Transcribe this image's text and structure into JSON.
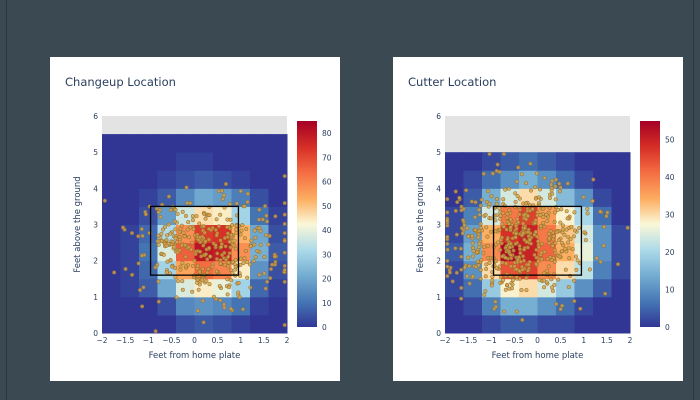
{
  "colors": {
    "background": "#3b4a52",
    "panel": "#ffffff",
    "na_region": "#e3e3e3",
    "strike_zone": "#000000",
    "point_fill": "#d7a24a",
    "point_edge": "#8a6a2c"
  },
  "chart_data": [
    {
      "type": "heatmap",
      "title": "Changeup Location",
      "xlabel": "Feet from home plate",
      "ylabel": "Feet above the ground",
      "xlim": [
        -2,
        2
      ],
      "ylim": [
        0,
        6
      ],
      "x_ticks": [
        "−2",
        "−1.5",
        "−1",
        "−0.5",
        "0",
        "0.5",
        "1",
        "1.5",
        "2"
      ],
      "y_ticks": [
        "0",
        "1",
        "2",
        "3",
        "4",
        "5",
        "6"
      ],
      "colorbar": {
        "min": 0,
        "max": 85,
        "ticks": [
          "0",
          "10",
          "20",
          "30",
          "40",
          "50",
          "60",
          "70",
          "80"
        ]
      },
      "colorscale": "RdYlBu (reversed)",
      "data_top": 5.5,
      "strike_zone": {
        "x": [
          -0.95,
          0.95
        ],
        "y": [
          1.6,
          3.5
        ]
      },
      "grid": {
        "cols": 10,
        "rows": 11,
        "x0": -2,
        "dx": 0.4,
        "y0": 0,
        "dy": 0.5
      },
      "cells": [
        [
          0,
          0,
          0,
          0,
          4,
          6,
          4,
          2,
          0,
          0
        ],
        [
          0,
          0,
          0,
          4,
          14,
          16,
          14,
          10,
          2,
          0
        ],
        [
          0,
          2,
          6,
          20,
          38,
          44,
          40,
          30,
          8,
          2
        ],
        [
          0,
          2,
          8,
          30,
          54,
          64,
          60,
          44,
          16,
          4
        ],
        [
          0,
          2,
          10,
          38,
          66,
          80,
          78,
          58,
          22,
          6
        ],
        [
          0,
          2,
          8,
          32,
          58,
          72,
          74,
          52,
          20,
          4
        ],
        [
          0,
          0,
          4,
          18,
          36,
          46,
          44,
          30,
          10,
          2
        ],
        [
          0,
          0,
          2,
          6,
          14,
          20,
          18,
          12,
          4,
          0
        ],
        [
          0,
          0,
          0,
          2,
          4,
          6,
          4,
          2,
          0,
          0
        ],
        [
          0,
          0,
          0,
          0,
          2,
          2,
          0,
          0,
          0,
          0
        ],
        [
          0,
          0,
          0,
          0,
          0,
          0,
          0,
          0,
          0,
          0
        ]
      ],
      "pitch_count": 380,
      "pitch_center": {
        "x": 0.35,
        "y": 2.3
      },
      "pitch_spread": {
        "x": 0.8,
        "y": 0.7
      }
    },
    {
      "type": "heatmap",
      "title": "Cutter Location",
      "xlabel": "Feet from home plate",
      "ylabel": "Feet above the ground",
      "xlim": [
        -2,
        2
      ],
      "ylim": [
        0,
        6
      ],
      "x_ticks": [
        "−2",
        "−1.5",
        "−1",
        "−0.5",
        "0",
        "0.5",
        "1",
        "1.5",
        "2"
      ],
      "y_ticks": [
        "0",
        "1",
        "2",
        "3",
        "4",
        "5",
        "6"
      ],
      "colorbar": {
        "min": 0,
        "max": 55,
        "ticks": [
          "0",
          "10",
          "20",
          "30",
          "40",
          "50"
        ]
      },
      "colorscale": "RdYlBu (reversed)",
      "data_top": 5.0,
      "strike_zone": {
        "x": [
          -0.95,
          0.95
        ],
        "y": [
          1.6,
          3.5
        ]
      },
      "grid": {
        "cols": 10,
        "rows": 10,
        "x0": -2,
        "dx": 0.4,
        "y0": 0,
        "dy": 0.5
      },
      "cells": [
        [
          0,
          0,
          2,
          4,
          4,
          2,
          2,
          0,
          0,
          0
        ],
        [
          0,
          2,
          8,
          14,
          14,
          10,
          6,
          2,
          0,
          0
        ],
        [
          2,
          6,
          18,
          28,
          30,
          24,
          18,
          10,
          4,
          0
        ],
        [
          2,
          10,
          30,
          44,
          46,
          38,
          30,
          22,
          8,
          2
        ],
        [
          4,
          14,
          38,
          54,
          50,
          42,
          34,
          26,
          10,
          2
        ],
        [
          2,
          12,
          34,
          48,
          50,
          40,
          32,
          24,
          10,
          2
        ],
        [
          2,
          8,
          24,
          40,
          46,
          36,
          28,
          20,
          6,
          0
        ],
        [
          0,
          4,
          14,
          24,
          30,
          24,
          16,
          10,
          2,
          0
        ],
        [
          0,
          2,
          6,
          10,
          14,
          10,
          6,
          2,
          0,
          0
        ],
        [
          0,
          0,
          2,
          4,
          6,
          4,
          2,
          0,
          0,
          0
        ]
      ],
      "pitch_count": 520,
      "pitch_center": {
        "x": -0.35,
        "y": 2.6
      },
      "pitch_spread": {
        "x": 0.85,
        "y": 0.85
      }
    }
  ]
}
